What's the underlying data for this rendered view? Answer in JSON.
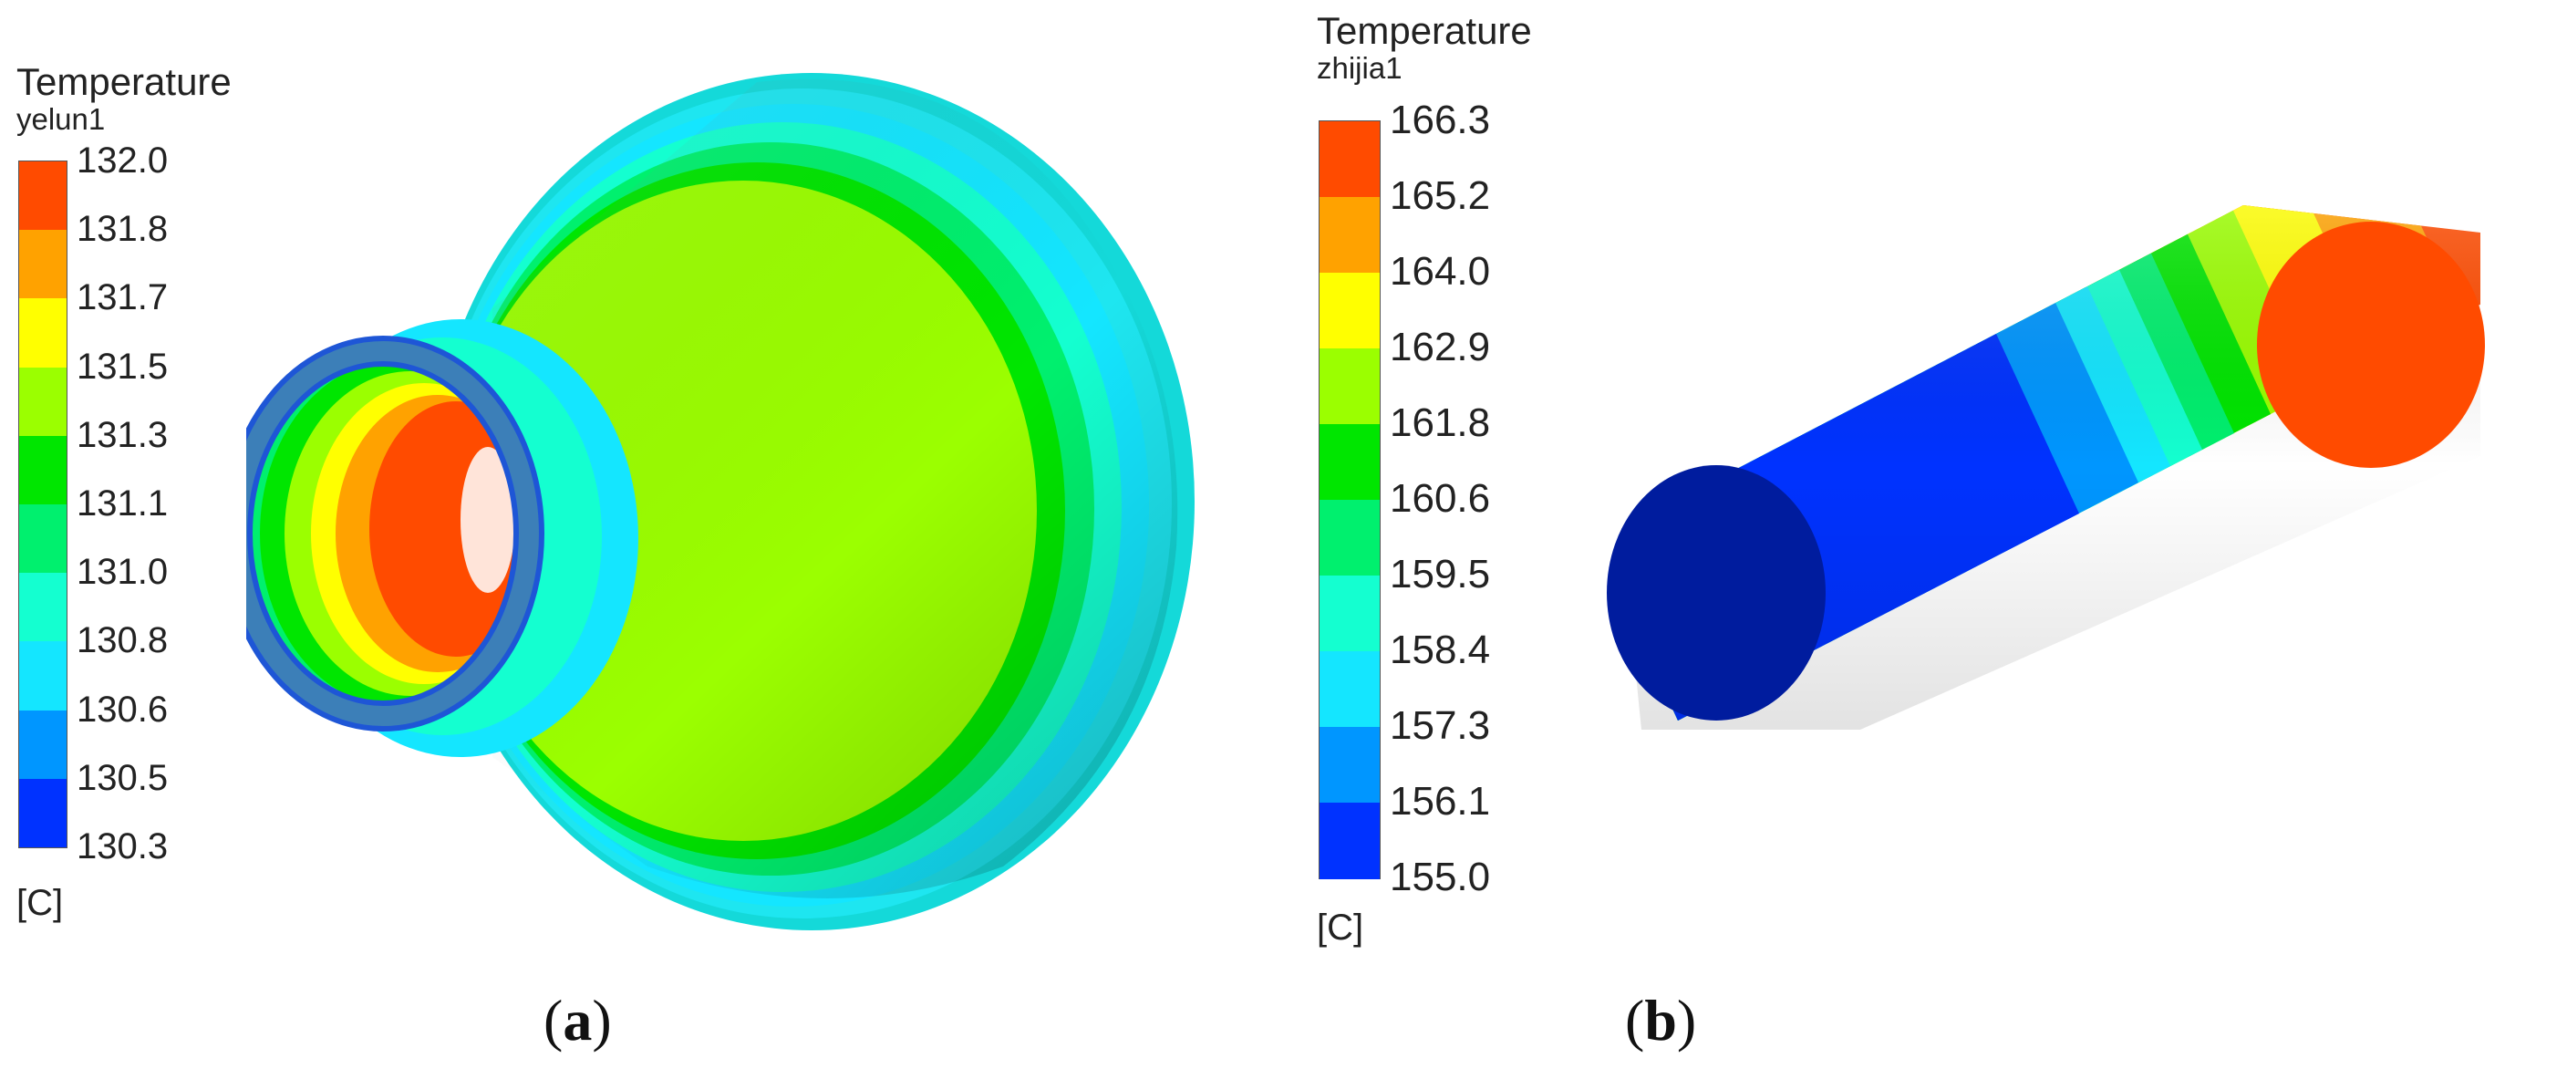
{
  "panel_a": {
    "legend": {
      "title": "Temperature",
      "subtitle": "yelun1",
      "unit": "[C]",
      "ticks": [
        "132.0",
        "131.8",
        "131.7",
        "131.5",
        "131.3",
        "131.1",
        "131.0",
        "130.8",
        "130.6",
        "130.5",
        "130.3"
      ],
      "colors": [
        "#ff4b00",
        "#ffa200",
        "#ffff00",
        "#9bff00",
        "#00e600",
        "#00f06e",
        "#14ffd0",
        "#14e6ff",
        "#0096ff",
        "#0032ff"
      ]
    },
    "caption_letter": "a"
  },
  "panel_b": {
    "legend": {
      "title": "Temperature",
      "subtitle": "zhijia1",
      "unit": "[C]",
      "ticks": [
        "166.3",
        "165.2",
        "164.0",
        "162.9",
        "161.8",
        "160.6",
        "159.5",
        "158.4",
        "157.3",
        "156.1",
        "155.0"
      ],
      "colors": [
        "#ff4b00",
        "#ffa200",
        "#ffff00",
        "#9bff00",
        "#00e600",
        "#00f06e",
        "#14ffd0",
        "#14e6ff",
        "#0096ff",
        "#0032ff"
      ]
    },
    "caption_letter": "b"
  }
}
